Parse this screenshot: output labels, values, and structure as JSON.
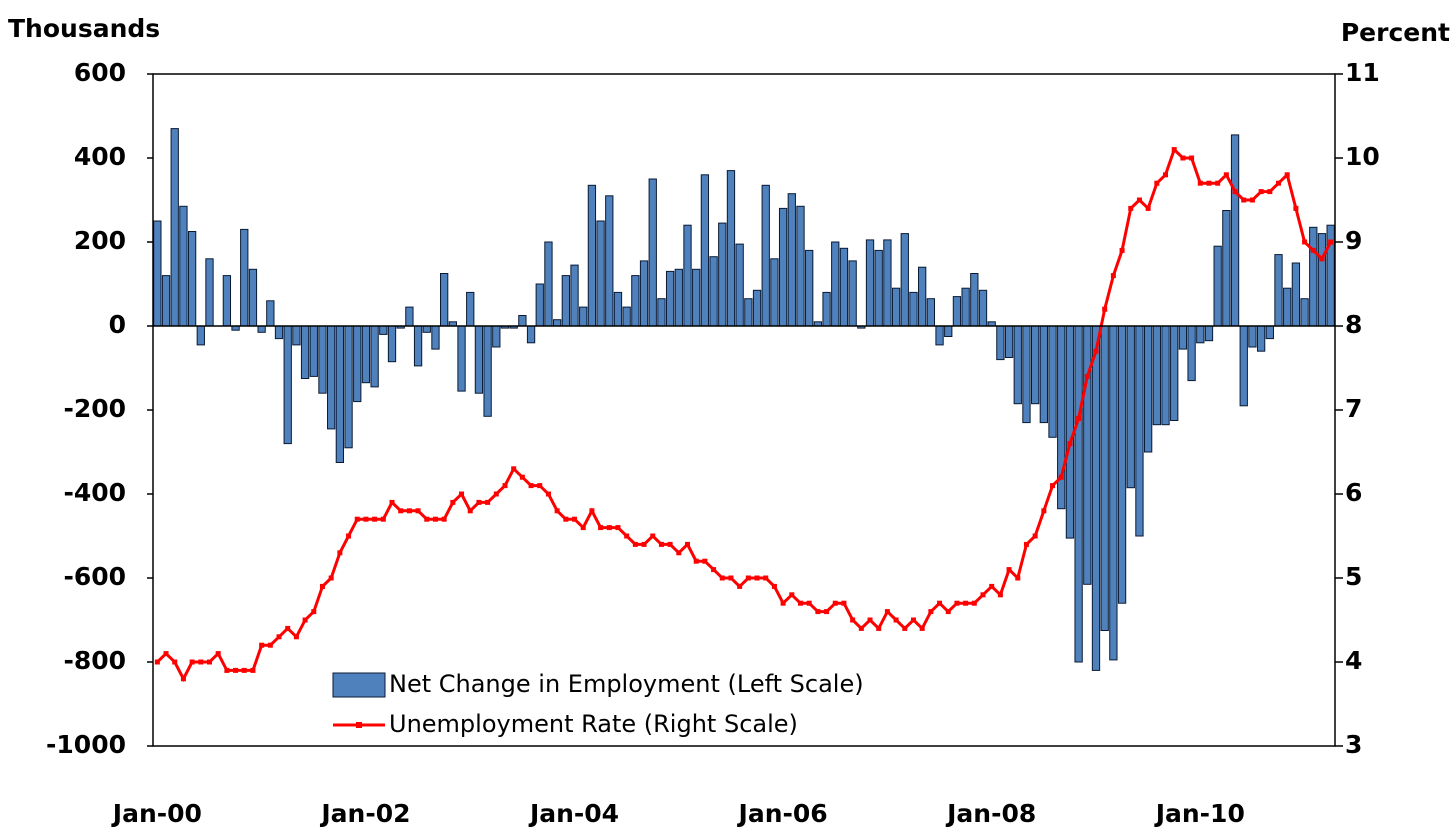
{
  "chart_data": {
    "type": "bar-line",
    "y_label": "Thousands",
    "y2_label": "Percent",
    "categories": [
      "Jan-00",
      null,
      null,
      null,
      null,
      null,
      null,
      null,
      null,
      null,
      null,
      null,
      null,
      null,
      null,
      null,
      null,
      null,
      null,
      null,
      null,
      null,
      null,
      null,
      "Jan-02",
      null,
      null,
      null,
      null,
      null,
      null,
      null,
      null,
      null,
      null,
      null,
      null,
      null,
      null,
      null,
      null,
      null,
      null,
      null,
      null,
      null,
      null,
      null,
      "Jan-04",
      null,
      null,
      null,
      null,
      null,
      null,
      null,
      null,
      null,
      null,
      null,
      null,
      null,
      null,
      null,
      null,
      null,
      null,
      null,
      null,
      null,
      null,
      null,
      "Jan-06",
      null,
      null,
      null,
      null,
      null,
      null,
      null,
      null,
      null,
      null,
      null,
      null,
      null,
      null,
      null,
      null,
      null,
      null,
      null,
      null,
      null,
      null,
      null,
      "Jan-08",
      null,
      null,
      null,
      null,
      null,
      null,
      null,
      null,
      null,
      null,
      null,
      null,
      null,
      null,
      null,
      null,
      null,
      null,
      null,
      null,
      null,
      null,
      null,
      "Jan-10",
      null,
      null,
      null,
      null,
      null,
      null,
      null,
      null,
      null,
      null,
      null,
      null,
      null,
      null,
      null
    ],
    "series": [
      {
        "name": "Net Change in Employment (Left Scale)",
        "type": "bar",
        "color": "#4f81bd",
        "values": [
          250,
          120,
          470,
          285,
          225,
          -45,
          160,
          0,
          120,
          -10,
          230,
          135,
          -15,
          60,
          -30,
          -280,
          -45,
          -125,
          -120,
          -160,
          -245,
          -325,
          -290,
          -180,
          -135,
          -145,
          -20,
          -85,
          -5,
          45,
          -95,
          -15,
          -55,
          125,
          10,
          -155,
          80,
          -160,
          -215,
          -50,
          -5,
          -5,
          25,
          -40,
          100,
          200,
          15,
          120,
          145,
          45,
          335,
          250,
          310,
          80,
          45,
          120,
          155,
          350,
          65,
          130,
          135,
          240,
          135,
          360,
          165,
          245,
          370,
          195,
          65,
          85,
          335,
          160,
          280,
          315,
          285,
          180,
          10,
          80,
          200,
          185,
          155,
          -5,
          205,
          180,
          205,
          90,
          220,
          80,
          140,
          65,
          -45,
          -25,
          70,
          90,
          125,
          85,
          10,
          -80,
          -75,
          -185,
          -230,
          -185,
          -230,
          -265,
          -435,
          -505,
          -800,
          -615,
          -820,
          -725,
          -795,
          -660,
          -385,
          -500,
          -300,
          -235,
          -235,
          -225,
          -55,
          -130,
          -40,
          -35,
          190,
          275,
          455,
          -190,
          -50,
          -60,
          -30,
          170,
          90,
          150,
          65,
          235,
          220,
          240
        ]
      },
      {
        "name": "Unemployment Rate (Right Scale)",
        "type": "line",
        "axis": "y2",
        "color": "#ff0000",
        "values": [
          4.0,
          4.1,
          4.0,
          3.8,
          4.0,
          4.0,
          4.0,
          4.1,
          3.9,
          3.9,
          3.9,
          3.9,
          4.2,
          4.2,
          4.3,
          4.4,
          4.3,
          4.5,
          4.6,
          4.9,
          5.0,
          5.3,
          5.5,
          5.7,
          5.7,
          5.7,
          5.7,
          5.9,
          5.8,
          5.8,
          5.8,
          5.7,
          5.7,
          5.7,
          5.9,
          6.0,
          5.8,
          5.9,
          5.9,
          6.0,
          6.1,
          6.3,
          6.2,
          6.1,
          6.1,
          6.0,
          5.8,
          5.7,
          5.7,
          5.6,
          5.8,
          5.6,
          5.6,
          5.6,
          5.5,
          5.4,
          5.4,
          5.5,
          5.4,
          5.4,
          5.3,
          5.4,
          5.2,
          5.2,
          5.1,
          5.0,
          5.0,
          4.9,
          5.0,
          5.0,
          5.0,
          4.9,
          4.7,
          4.8,
          4.7,
          4.7,
          4.6,
          4.6,
          4.7,
          4.7,
          4.5,
          4.4,
          4.5,
          4.4,
          4.6,
          4.5,
          4.4,
          4.5,
          4.4,
          4.6,
          4.7,
          4.6,
          4.7,
          4.7,
          4.7,
          4.8,
          4.9,
          4.8,
          5.1,
          5.0,
          5.4,
          5.5,
          5.8,
          6.1,
          6.2,
          6.6,
          6.9,
          7.4,
          7.7,
          8.2,
          8.6,
          8.9,
          9.4,
          9.5,
          9.4,
          9.7,
          9.8,
          10.1,
          10.0,
          10.0,
          9.7,
          9.7,
          9.7,
          9.8,
          9.6,
          9.5,
          9.5,
          9.6,
          9.6,
          9.7,
          9.8,
          9.4,
          9.0,
          8.9,
          8.8,
          9.0
        ]
      }
    ],
    "ylim": [
      -1000,
      600
    ],
    "yticks": [
      -1000,
      -800,
      -600,
      -400,
      -200,
      0,
      200,
      400,
      600
    ],
    "y2lim": [
      3,
      11
    ],
    "y2ticks": [
      3,
      4,
      5,
      6,
      7,
      8,
      9,
      10,
      11
    ],
    "legend": "lower left"
  }
}
